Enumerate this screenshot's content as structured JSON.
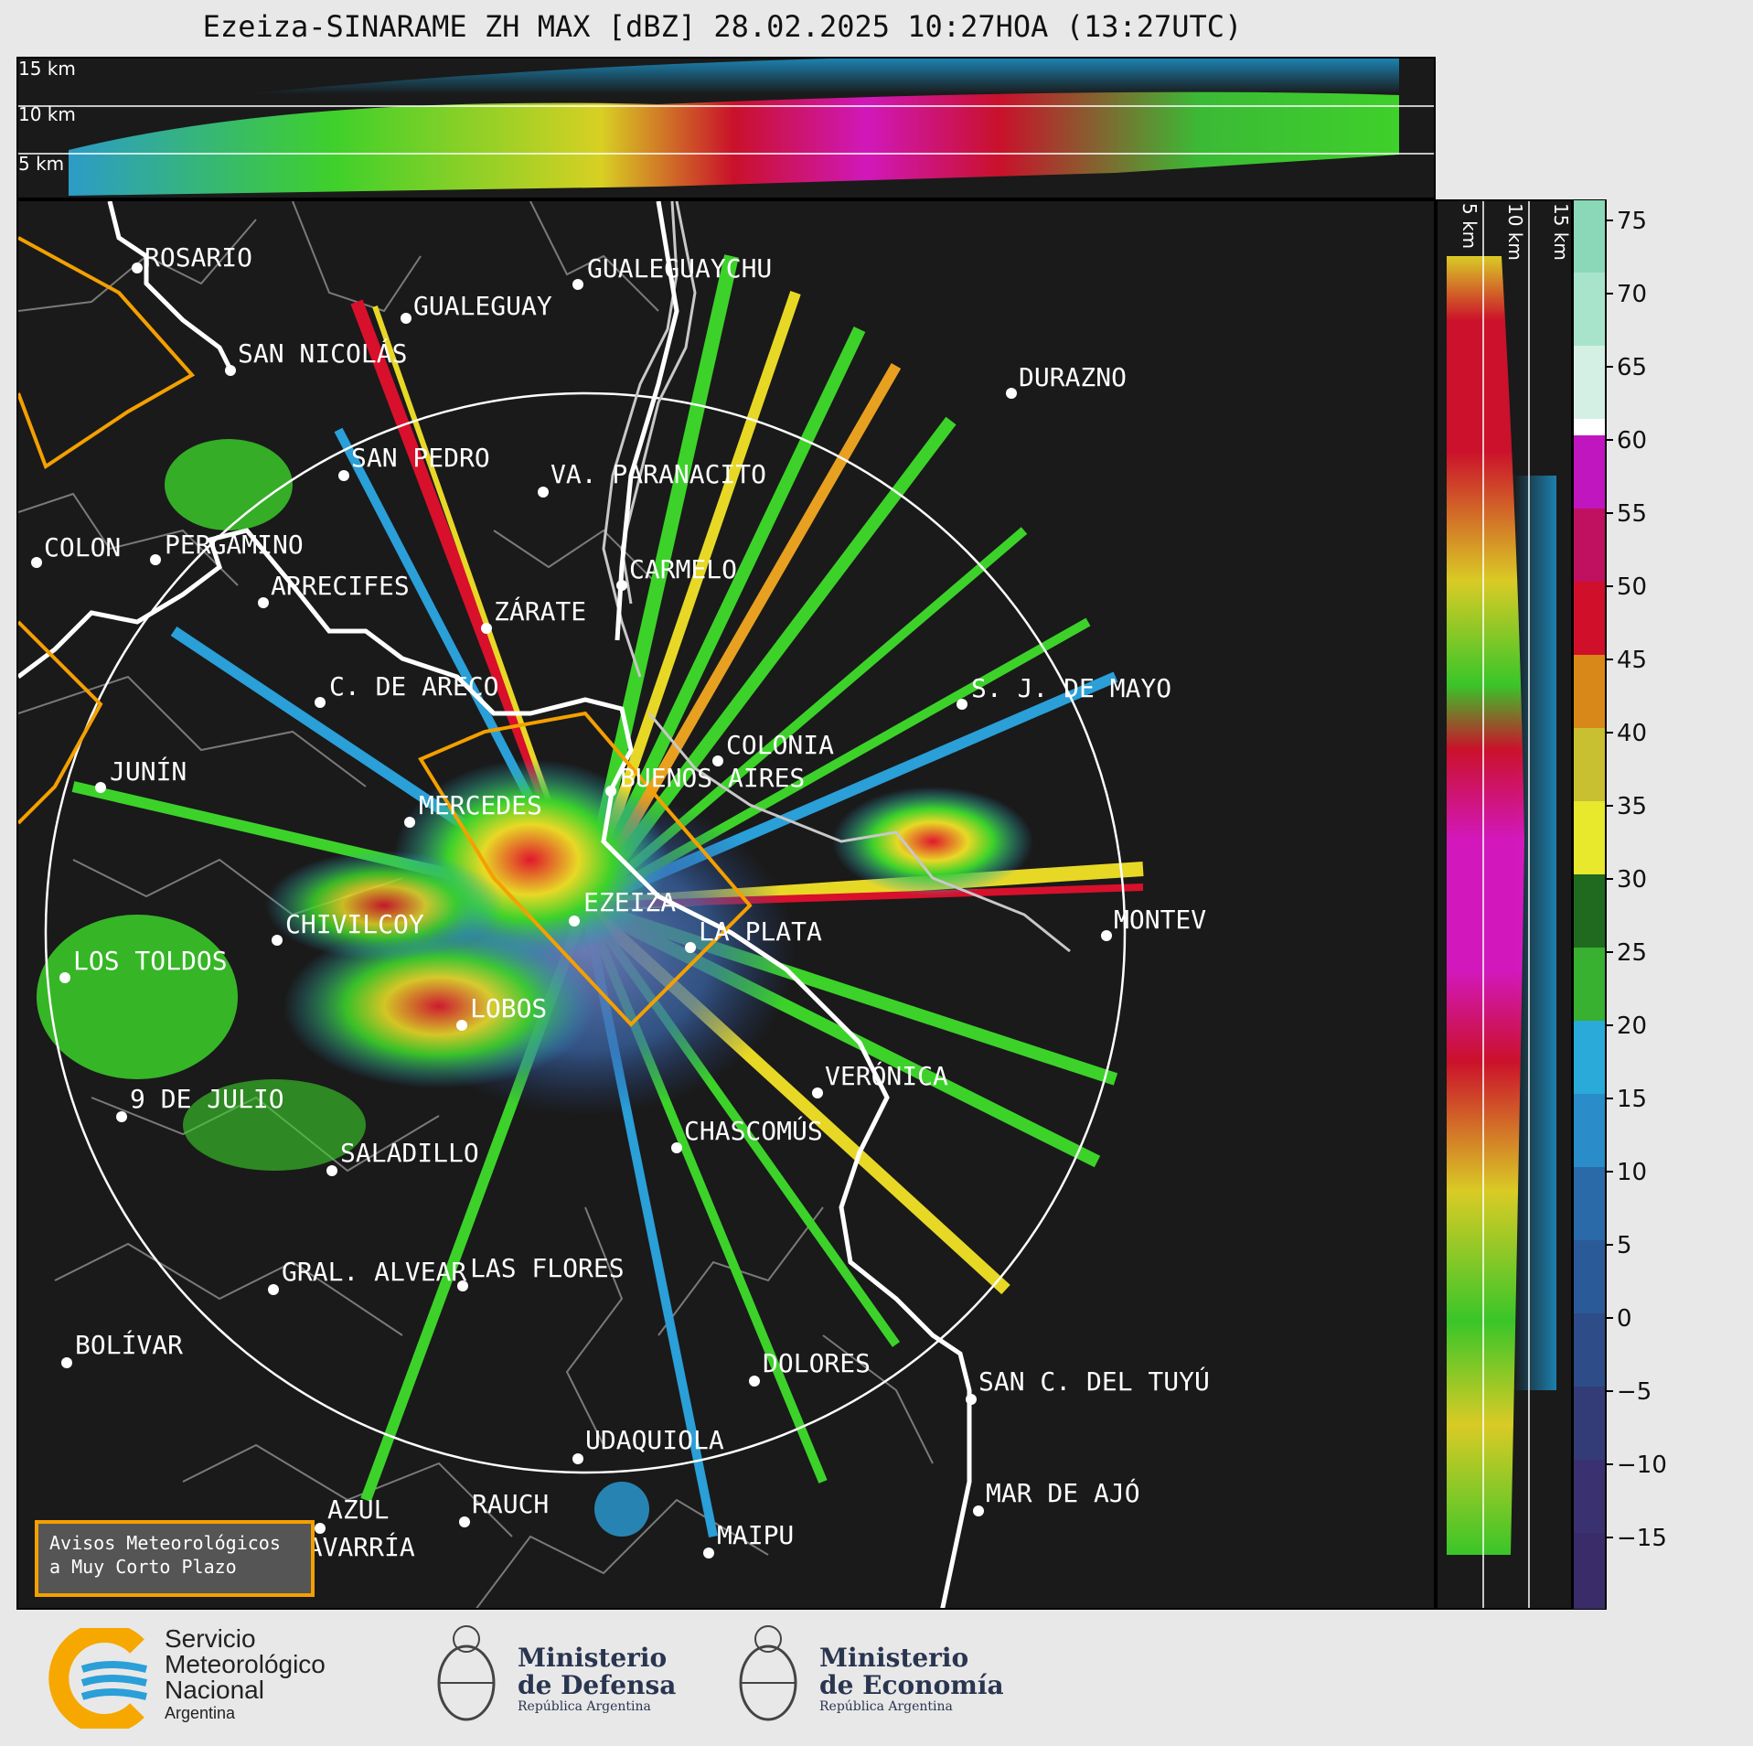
{
  "title": "Ezeiza-SINARAME ZH MAX [dBZ] 28.02.2025 10:27HOA (13:27UTC)",
  "top_panel": {
    "height_labels": [
      "15 km",
      "10 km",
      "5 km"
    ]
  },
  "side_panel": {
    "height_labels": [
      "5 km",
      "10 km",
      "15 km"
    ]
  },
  "colorbar": {
    "ticks": [
      "75",
      "70",
      "65",
      "60",
      "55",
      "50",
      "45",
      "40",
      "35",
      "30",
      "25",
      "20",
      "15",
      "10",
      "5",
      "0",
      "−5",
      "−10",
      "−15"
    ]
  },
  "cities": [
    {
      "name": "ROSARIO"
    },
    {
      "name": "GUALEGUAYCHU"
    },
    {
      "name": "GUALEGUAY"
    },
    {
      "name": "SAN NICOLÁS"
    },
    {
      "name": "DURAZNO"
    },
    {
      "name": "SAN PEDRO"
    },
    {
      "name": "VA. PARANACITO"
    },
    {
      "name": "COLON"
    },
    {
      "name": "PERGAMINO"
    },
    {
      "name": "CARMELO"
    },
    {
      "name": "ARRECIFES"
    },
    {
      "name": "ZÁRATE"
    },
    {
      "name": "C. DE ARECO"
    },
    {
      "name": "S. J. DE MAYO"
    },
    {
      "name": "COLONIA"
    },
    {
      "name": "JUNÍN"
    },
    {
      "name": "BUENOS AIRES"
    },
    {
      "name": "MERCEDES"
    },
    {
      "name": "EZEIZA"
    },
    {
      "name": "MONTEV"
    },
    {
      "name": "CHIVILCOY"
    },
    {
      "name": "LA PLATA"
    },
    {
      "name": "LOS TOLDOS"
    },
    {
      "name": "LOBOS"
    },
    {
      "name": "VERÓNICA"
    },
    {
      "name": "9 DE JULIO"
    },
    {
      "name": "CHASCOMÚS"
    },
    {
      "name": "SALADILLO"
    },
    {
      "name": "GRAL. ALVEAR"
    },
    {
      "name": "LAS FLORES"
    },
    {
      "name": "BOLÍVAR"
    },
    {
      "name": "DOLORES"
    },
    {
      "name": "SAN C. DEL TUYÚ"
    },
    {
      "name": "UDAQUIOLA"
    },
    {
      "name": "AZUL"
    },
    {
      "name": "RAUCH"
    },
    {
      "name": "OLAVARRÍA"
    },
    {
      "name": "MAR DE AJÓ"
    },
    {
      "name": "MAIPU"
    }
  ],
  "warning_box": {
    "line1": "Avisos Meteorológicos",
    "line2": "a Muy Corto Plazo"
  },
  "logos": {
    "smn": {
      "line1": "Servicio",
      "line2": "Meteorológico",
      "line3": "Nacional",
      "line4": "Argentina"
    },
    "defensa": {
      "line1": "Ministerio",
      "line2": "de Defensa",
      "line3": "República Argentina"
    },
    "economia": {
      "line1": "Ministerio",
      "line2": "de Economía",
      "line3": "República Argentina"
    }
  },
  "colors": {
    "background": "#1a1a1a",
    "coast": "#ffffff",
    "warning": "#f4a000",
    "borders": "#888888",
    "range_ring": "#ffffff"
  }
}
